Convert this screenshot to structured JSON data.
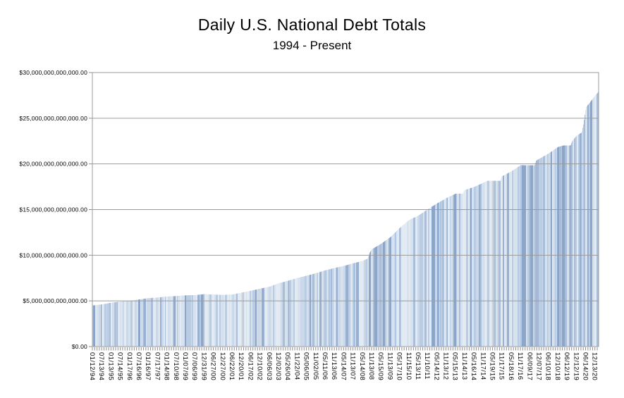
{
  "header": {
    "title": "Daily U.S. National Debt Totals",
    "subtitle": "1994 - Present"
  },
  "chart_data": {
    "type": "bar",
    "title": "Daily U.S. National Debt Totals",
    "subtitle": "1994 - Present",
    "xlabel": "",
    "ylabel": "",
    "ylim": [
      0,
      30000000000000
    ],
    "grid": "horizontal",
    "legend": "none",
    "y_ticks": [
      {
        "value": 0,
        "label": "$0.00"
      },
      {
        "value": 5000000000000,
        "label": "$5,000,000,000,000.00"
      },
      {
        "value": 10000000000000,
        "label": "$10,000,000,000,000.00"
      },
      {
        "value": 15000000000000,
        "label": "$15,000,000,000,000.00"
      },
      {
        "value": 20000000000000,
        "label": "$20,000,000,000,000.00"
      },
      {
        "value": 25000000000000,
        "label": "$25,000,000,000,000.00"
      },
      {
        "value": 30000000000000,
        "label": "$30,000,000,000,000.00"
      }
    ],
    "categories": [
      "01/12/94",
      "07/13/94",
      "01/13/95",
      "07/14/95",
      "01/17/96",
      "07/16/96",
      "01/16/97",
      "07/17/97",
      "01/14/98",
      "07/10/98",
      "01/07/99",
      "07/06/99",
      "12/31/99",
      "06/27/00",
      "12/27/00",
      "06/22/01",
      "12/20/01",
      "06/17/02",
      "12/10/02",
      "06/06/03",
      "12/02/03",
      "05/26/04",
      "11/22/04",
      "05/06/05",
      "11/02/05",
      "05/11/06",
      "11/13/06",
      "05/14/07",
      "11/13/07",
      "05/14/08",
      "11/13/08",
      "05/15/09",
      "11/13/09",
      "05/17/10",
      "11/15/10",
      "05/13/11",
      "11/10/11",
      "05/14/12",
      "11/13/12",
      "05/15/13",
      "11/14/13",
      "05/16/14",
      "11/17/14",
      "05/19/15",
      "11/17/15",
      "05/18/16",
      "11/17/16",
      "06/09/17",
      "12/07/17",
      "06/10/18",
      "12/10/18",
      "06/12/19",
      "12/12/19",
      "06/14/20",
      "12/13/20"
    ],
    "values_at_labels_trillions": [
      4.5,
      4.62,
      4.8,
      4.95,
      5.02,
      5.16,
      5.31,
      5.37,
      5.48,
      5.53,
      5.61,
      5.64,
      5.74,
      5.69,
      5.66,
      5.7,
      5.91,
      6.11,
      6.34,
      6.56,
      6.93,
      7.21,
      7.51,
      7.76,
      8.03,
      8.35,
      8.61,
      8.83,
      9.12,
      9.38,
      10.66,
      11.26,
      11.99,
      12.99,
      13.86,
      14.34,
      15.03,
      15.67,
      16.25,
      16.74,
      17.15,
      17.48,
      17.94,
      18.15,
      18.65,
      19.19,
      19.87,
      19.85,
      20.57,
      21.14,
      21.85,
      22.02,
      23.07,
      26.19,
      27.5
    ],
    "shape_points_index_trillions": [
      [
        0,
        4.5
      ],
      [
        1,
        4.62
      ],
      [
        2,
        4.8
      ],
      [
        3,
        4.95
      ],
      [
        4,
        5.02
      ],
      [
        5,
        5.16
      ],
      [
        6,
        5.31
      ],
      [
        7,
        5.37
      ],
      [
        8,
        5.48
      ],
      [
        9,
        5.53
      ],
      [
        10,
        5.61
      ],
      [
        11,
        5.64
      ],
      [
        12,
        5.74
      ],
      [
        13,
        5.69
      ],
      [
        14,
        5.66
      ],
      [
        15,
        5.7
      ],
      [
        16,
        5.91
      ],
      [
        17,
        6.11
      ],
      [
        18,
        6.34
      ],
      [
        19,
        6.56
      ],
      [
        20,
        6.93
      ],
      [
        21,
        7.21
      ],
      [
        22,
        7.51
      ],
      [
        23,
        7.76
      ],
      [
        24,
        8.03
      ],
      [
        25,
        8.35
      ],
      [
        26,
        8.61
      ],
      [
        27,
        8.83
      ],
      [
        28,
        9.12
      ],
      [
        29,
        9.38
      ],
      [
        29.55,
        9.63
      ],
      [
        29.8,
        10.35
      ],
      [
        30,
        10.66
      ],
      [
        31,
        11.26
      ],
      [
        32,
        11.99
      ],
      [
        33,
        12.99
      ],
      [
        34,
        13.86
      ],
      [
        35,
        14.34
      ],
      [
        36,
        15.03
      ],
      [
        37,
        15.67
      ],
      [
        38,
        16.25
      ],
      [
        39,
        16.74
      ],
      [
        39.8,
        16.75
      ],
      [
        39.92,
        17.08
      ],
      [
        40,
        17.15
      ],
      [
        41,
        17.48
      ],
      [
        42,
        17.94
      ],
      [
        42.4,
        18.15
      ],
      [
        43.8,
        18.15
      ],
      [
        43.95,
        18.62
      ],
      [
        44,
        18.65
      ],
      [
        45,
        19.19
      ],
      [
        46,
        19.87
      ],
      [
        46.4,
        19.85
      ],
      [
        47.5,
        19.85
      ],
      [
        47.65,
        20.35
      ],
      [
        48,
        20.57
      ],
      [
        49,
        21.14
      ],
      [
        50,
        21.85
      ],
      [
        50.6,
        22.02
      ],
      [
        51.35,
        22.02
      ],
      [
        51.55,
        22.55
      ],
      [
        52,
        23.07
      ],
      [
        52.55,
        23.45
      ],
      [
        52.75,
        24.4
      ],
      [
        52.9,
        25.5
      ],
      [
        53,
        26.19
      ],
      [
        53.3,
        26.55
      ],
      [
        54,
        27.5
      ],
      [
        54.4,
        27.95
      ]
    ],
    "right_edge_index": 54.4,
    "minor_ticks_per_label": 4,
    "colors": {
      "bar_palette": [
        "#e2eaf4",
        "#d7e2ef",
        "#cad8e9",
        "#bacce2",
        "#aabed9",
        "#98b0d1",
        "#8ca6ca"
      ],
      "gridline": "#9b9b9b",
      "axis_line": "#595959",
      "tick": "#8f8f8f",
      "text": "#000000"
    }
  }
}
